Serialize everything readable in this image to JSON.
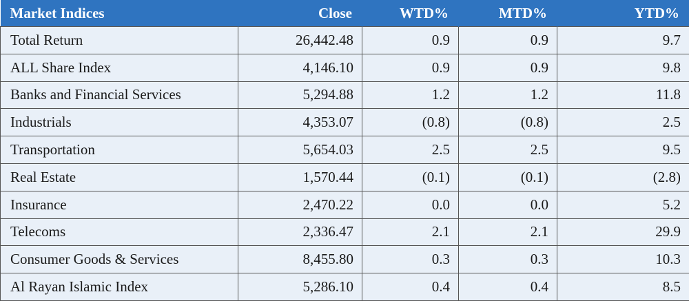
{
  "table": {
    "header": [
      "Market Indices",
      "Close",
      "WTD%",
      "MTD%",
      "YTD%"
    ],
    "rows": [
      [
        "Total Return",
        "26,442.48",
        "0.9",
        "0.9",
        "9.7"
      ],
      [
        "ALL Share Index",
        "4,146.10",
        "0.9",
        "0.9",
        "9.8"
      ],
      [
        "Banks and Financial Services",
        "5,294.88",
        "1.2",
        "1.2",
        "11.8"
      ],
      [
        "Industrials",
        "4,353.07",
        "(0.8)",
        "(0.8)",
        "2.5"
      ],
      [
        "Transportation",
        "5,654.03",
        "2.5",
        "2.5",
        "9.5"
      ],
      [
        "Real Estate",
        "1,570.44",
        "(0.1)",
        "(0.1)",
        "(2.8)"
      ],
      [
        "Insurance",
        "2,470.22",
        "0.0",
        "0.0",
        "5.2"
      ],
      [
        "Telecoms",
        "2,336.47",
        "2.1",
        "2.1",
        "29.9"
      ],
      [
        "Consumer Goods & Services",
        "8,455.80",
        "0.3",
        "0.3",
        "10.3"
      ],
      [
        "Al Rayan Islamic Index",
        "5,286.10",
        "0.4",
        "0.4",
        "8.5"
      ]
    ]
  }
}
